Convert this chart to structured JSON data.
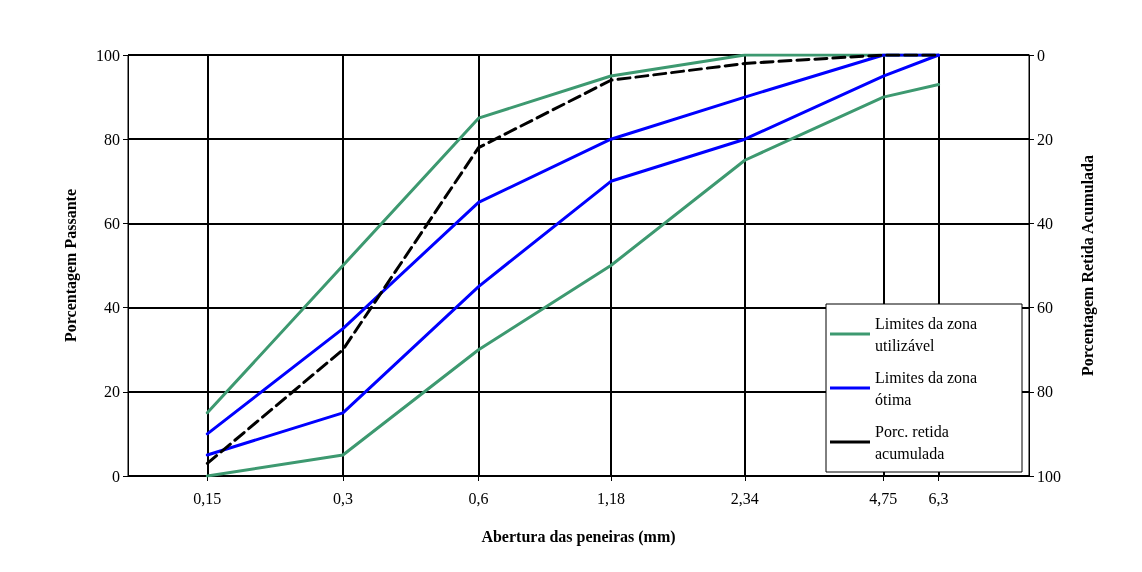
{
  "chart_data": {
    "type": "line",
    "xlabel": "Abertura das peneiras (mm)",
    "ylabel": "Porcentagem Passante",
    "y2label": "Porcentagem Retida Acumulada",
    "log": "x",
    "xlim": [
      0.1,
      10
    ],
    "xticks": [
      {
        "value": 0.15,
        "label": "0,15"
      },
      {
        "value": 0.3,
        "label": "0,3"
      },
      {
        "value": 0.6,
        "label": "0,6"
      },
      {
        "value": 1.18,
        "label": "1,18"
      },
      {
        "value": 2.34,
        "label": "2,34"
      },
      {
        "value": 4.75,
        "label": "4,75"
      },
      {
        "value": 6.3,
        "label": "6,3"
      }
    ],
    "x": [
      0.15,
      0.3,
      0.6,
      1.18,
      2.34,
      4.75,
      6.3
    ],
    "ylim": [
      0,
      100
    ],
    "yticks": [
      0,
      20,
      40,
      60,
      80,
      100
    ],
    "y2lim": [
      100,
      0
    ],
    "y2ticks": [
      0,
      20,
      40,
      60,
      80,
      100
    ],
    "grid": true,
    "legend": "bottom right",
    "marker": "none",
    "series": [
      {
        "name": "Limites da zona utilizável",
        "color": "#3d9970",
        "values": [
          15,
          50,
          85,
          95,
          100,
          100,
          100
        ]
      },
      {
        "color": "#3d9970",
        "values": [
          0,
          5,
          30,
          50,
          75,
          90,
          93
        ]
      },
      {
        "name": "Limites da zona ótima",
        "color": "#0000ff",
        "values": [
          10,
          35,
          65,
          80,
          90,
          100,
          100
        ]
      },
      {
        "color": "#0000ff",
        "values": [
          5,
          15,
          45,
          70,
          80,
          95,
          100
        ]
      },
      {
        "name": "Porc. retida acumulada",
        "color": "#000000",
        "axis": "y2",
        "line_style": "dashed",
        "values": [
          97,
          70,
          22,
          6,
          2,
          0,
          0
        ]
      }
    ]
  }
}
